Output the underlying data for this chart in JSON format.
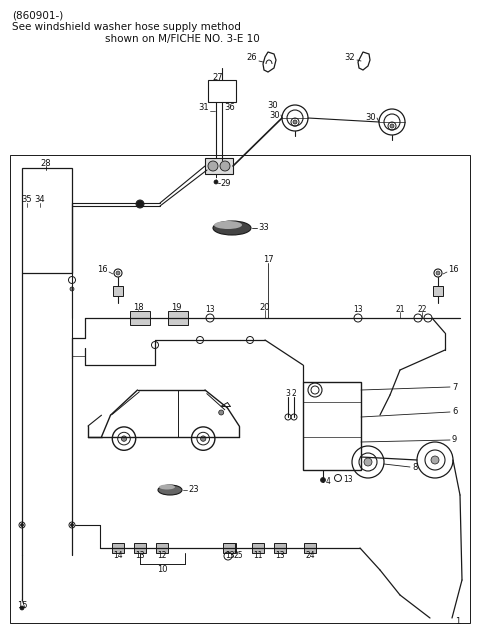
{
  "title_line1": "(860901-)",
  "title_line2": "See windshield washer hose supply method",
  "title_line3": "shown on M/FICHE NO. 3-E 10",
  "bg_color": "#ffffff",
  "lc": "#1a1a1a",
  "tc": "#111111",
  "fig_width": 4.8,
  "fig_height": 6.38,
  "dpi": 100
}
